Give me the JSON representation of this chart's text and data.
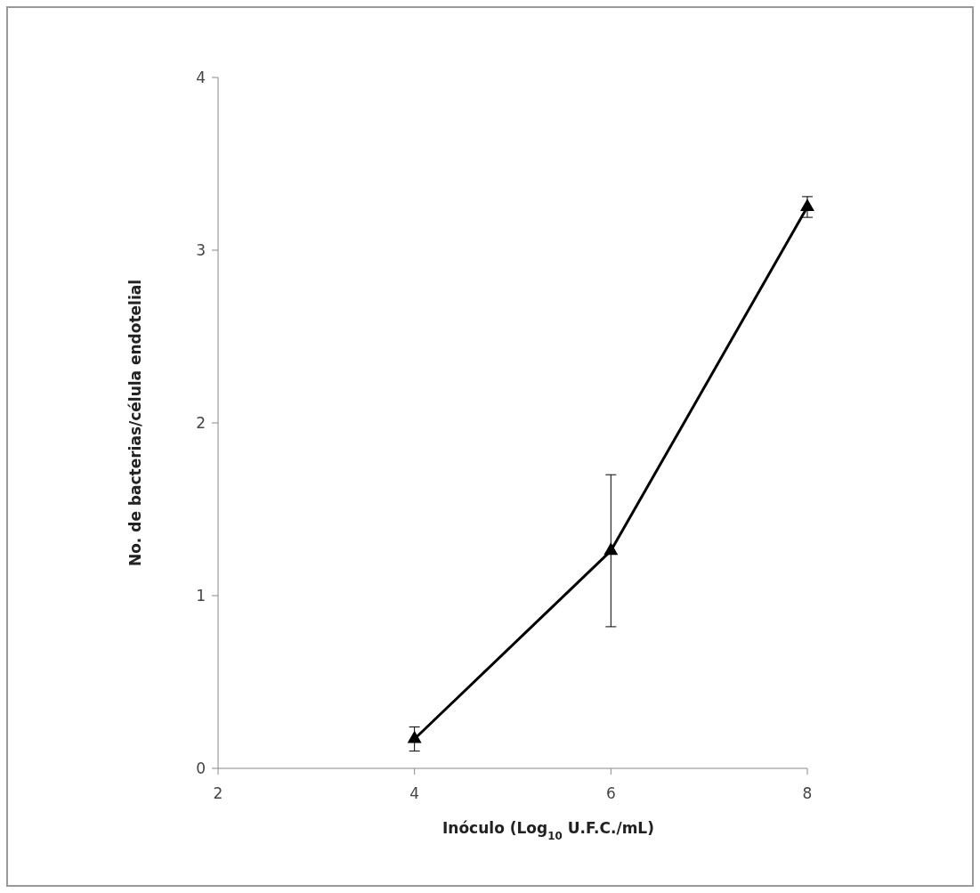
{
  "chart_data": {
    "type": "line",
    "xlabel": "Inóculo (Log$_{10}$ U.F.C./mL)",
    "ylabel": "No. de bacterias/célula endotelial",
    "x": [
      4,
      6,
      8
    ],
    "series": [
      {
        "color": "#000000",
        "values": [
          0.17,
          1.26,
          3.25
        ],
        "errors": [
          0.07,
          0.44,
          0.06
        ]
      }
    ],
    "xlim": [
      2,
      8
    ],
    "xticks": [
      2,
      4,
      6,
      8
    ],
    "ylim": [
      0,
      4
    ],
    "yticks": [
      0,
      1,
      2,
      3,
      4
    ],
    "grid": false,
    "marker": "triangle",
    "line_style": "solid"
  }
}
